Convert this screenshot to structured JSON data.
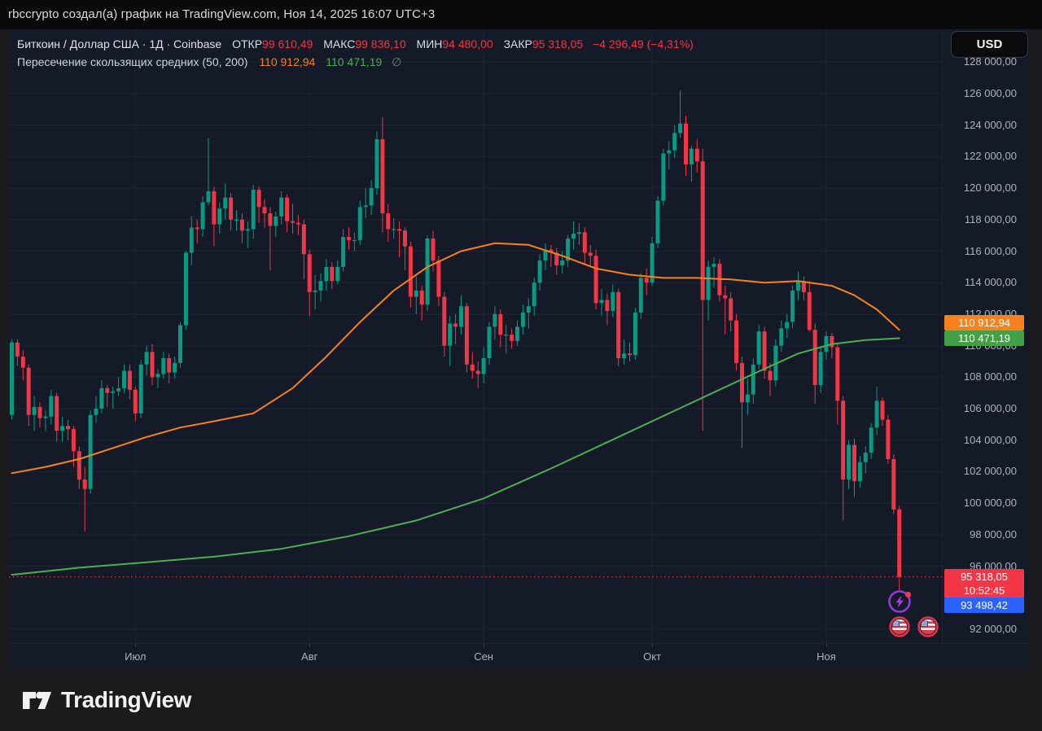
{
  "attribution": "rbccrypto создал(а) график на TradingView.com, Ноя 14, 2025 16:07 UTC+3",
  "header": {
    "title": "Биткоин / Доллар США · 1Д · Coinbase",
    "ohlc": [
      {
        "label": "ОТКР",
        "value": "99 610,49"
      },
      {
        "label": "МАКС",
        "value": "99 836,10"
      },
      {
        "label": "МИН",
        "value": "94 480,00"
      },
      {
        "label": "ЗАКР",
        "value": "95 318,05"
      }
    ],
    "change": "−4 296,49 (−4,31%)",
    "currency_button": "USD"
  },
  "indicator": {
    "name": "Пересечение скользящих средних (50, 200)",
    "ma50_value": "110 912,94",
    "ma200_value": "110 471,19",
    "suffix_symbol": "∅"
  },
  "price_axis": {
    "ticks": [
      {
        "value": 128000,
        "label": "128 000,00"
      },
      {
        "value": 126000,
        "label": "126 000,00"
      },
      {
        "value": 124000,
        "label": "124 000,00"
      },
      {
        "value": 122000,
        "label": "122 000,00"
      },
      {
        "value": 120000,
        "label": "120 000,00"
      },
      {
        "value": 118000,
        "label": "118 000,00"
      },
      {
        "value": 116000,
        "label": "116 000,00"
      },
      {
        "value": 114000,
        "label": "114 000,00"
      },
      {
        "value": 112000,
        "label": "112 000,00"
      },
      {
        "value": 110000,
        "label": "110 000,00"
      },
      {
        "value": 108000,
        "label": "108 000,00"
      },
      {
        "value": 106000,
        "label": "106 000,00"
      },
      {
        "value": 104000,
        "label": "104 000,00"
      },
      {
        "value": 102000,
        "label": "102 000,00"
      },
      {
        "value": 100000,
        "label": "100 000,00"
      },
      {
        "value": 98000,
        "label": "98 000,00"
      },
      {
        "value": 96000,
        "label": "96 000,00"
      },
      {
        "value": 92000,
        "label": "92 000,00"
      }
    ]
  },
  "time_axis": {
    "months": [
      {
        "label": "Июл",
        "day_index": 22
      },
      {
        "label": "Авг",
        "day_index": 53
      },
      {
        "label": "Сен",
        "day_index": 84
      },
      {
        "label": "Окт",
        "day_index": 114
      },
      {
        "label": "Ноя",
        "day_index": 145
      }
    ]
  },
  "price_labels": {
    "ma50": {
      "text": "110 912,94",
      "value": 110912.94,
      "color": "#f7821c"
    },
    "ma200": {
      "text": "110 471,19",
      "value": 110471.19,
      "color": "#43a047"
    },
    "last": {
      "price_text": "95 318,05",
      "countdown_text": "10:52:45",
      "value": 95318.05,
      "color": "#f23645"
    },
    "blue": {
      "text": "93 498,42",
      "value": 93498.42,
      "color": "#2962ff"
    }
  },
  "markers": {
    "lightning": "lightning-event",
    "flags": [
      "us-flag",
      "us-flag"
    ]
  },
  "footer": {
    "logo_text": "TradingView"
  },
  "chart_data": {
    "type": "candlestick",
    "title": "Биткоин / Доллар США 1Д Coinbase",
    "x_start_date": "2025-06-09",
    "x_end_date": "2025-11-14",
    "values_unit": "USD thousands",
    "ylim": [
      91000,
      127500
    ],
    "grid": true,
    "up_color": "#0a9a82",
    "down_color": "#f23645",
    "ma50_color": "#f7821c",
    "ma200_color": "#4caf50",
    "close_line_value": 95.31805,
    "candles": [
      [
        105.6,
        110.4,
        105.3,
        110.2
      ],
      [
        110.2,
        110.4,
        108.7,
        109.3
      ],
      [
        109.3,
        109.7,
        107.8,
        108.6
      ],
      [
        108.6,
        108.8,
        104.9,
        105.6
      ],
      [
        105.6,
        106.8,
        104.6,
        106.1
      ],
      [
        106.1,
        106.4,
        104.8,
        105.4
      ],
      [
        105.4,
        105.9,
        104.6,
        105.5
      ],
      [
        105.5,
        107.2,
        105.0,
        106.8
      ],
      [
        106.8,
        107.0,
        103.9,
        104.6
      ],
      [
        104.6,
        105.5,
        103.9,
        104.9
      ],
      [
        104.9,
        105.3,
        104.0,
        104.7
      ],
      [
        104.7,
        104.9,
        102.3,
        103.3
      ],
      [
        103.3,
        103.6,
        100.9,
        101.5
      ],
      [
        101.5,
        102.3,
        98.2,
        100.9
      ],
      [
        100.9,
        105.9,
        100.6,
        105.6
      ],
      [
        105.6,
        106.8,
        105.1,
        106.0
      ],
      [
        106.0,
        107.8,
        105.7,
        107.3
      ],
      [
        107.3,
        107.5,
        106.1,
        107.0
      ],
      [
        107.0,
        107.4,
        106.0,
        107.1
      ],
      [
        107.1,
        108.0,
        106.8,
        107.3
      ],
      [
        107.3,
        108.8,
        107.0,
        108.4
      ],
      [
        108.4,
        108.8,
        106.6,
        107.2
      ],
      [
        107.2,
        107.4,
        105.2,
        105.7
      ],
      [
        105.7,
        109.1,
        105.4,
        108.8
      ],
      [
        108.8,
        110.0,
        108.1,
        109.6
      ],
      [
        109.6,
        110.1,
        107.5,
        108.0
      ],
      [
        108.0,
        108.5,
        107.3,
        108.2
      ],
      [
        108.2,
        109.6,
        107.9,
        109.2
      ],
      [
        109.2,
        109.5,
        107.6,
        108.3
      ],
      [
        108.3,
        109.3,
        107.9,
        108.9
      ],
      [
        108.9,
        111.5,
        108.6,
        111.3
      ],
      [
        111.3,
        116.0,
        111.0,
        115.9
      ],
      [
        115.9,
        118.2,
        115.1,
        117.5
      ],
      [
        117.5,
        118.0,
        116.5,
        117.4
      ],
      [
        117.4,
        119.5,
        116.9,
        119.1
      ],
      [
        119.1,
        123.2,
        118.9,
        119.8
      ],
      [
        119.8,
        120.1,
        116.3,
        117.7
      ],
      [
        117.7,
        119.1,
        117.1,
        118.7
      ],
      [
        118.7,
        120.3,
        118.0,
        119.4
      ],
      [
        119.4,
        119.7,
        117.3,
        118.0
      ],
      [
        118.0,
        118.6,
        117.3,
        118.0
      ],
      [
        118.0,
        118.4,
        116.5,
        117.3
      ],
      [
        117.3,
        117.9,
        116.2,
        117.4
      ],
      [
        117.4,
        120.2,
        116.8,
        119.9
      ],
      [
        119.9,
        120.1,
        117.8,
        118.8
      ],
      [
        118.8,
        119.3,
        117.5,
        118.4
      ],
      [
        118.4,
        118.8,
        114.8,
        117.6
      ],
      [
        117.6,
        118.5,
        116.9,
        118.2
      ],
      [
        118.2,
        119.8,
        117.7,
        119.4
      ],
      [
        119.4,
        119.6,
        117.2,
        117.9
      ],
      [
        117.9,
        119.0,
        117.1,
        117.8
      ],
      [
        117.8,
        118.3,
        117.0,
        117.7
      ],
      [
        117.7,
        118.0,
        114.2,
        115.8
      ],
      [
        115.8,
        116.1,
        111.9,
        113.4
      ],
      [
        113.4,
        114.5,
        112.3,
        113.5
      ],
      [
        113.5,
        114.6,
        112.8,
        114.1
      ],
      [
        114.1,
        115.5,
        113.5,
        115.0
      ],
      [
        115.0,
        115.3,
        113.6,
        114.1
      ],
      [
        114.1,
        115.4,
        113.9,
        115.0
      ],
      [
        115.0,
        117.4,
        114.7,
        116.9
      ],
      [
        116.9,
        117.5,
        116.1,
        116.7
      ],
      [
        116.7,
        117.2,
        116.0,
        116.7
      ],
      [
        116.7,
        119.2,
        116.4,
        118.8
      ],
      [
        118.8,
        120.0,
        118.1,
        118.9
      ],
      [
        118.9,
        120.5,
        118.3,
        120.0
      ],
      [
        120.0,
        123.6,
        119.6,
        123.1
      ],
      [
        123.1,
        124.5,
        117.2,
        118.4
      ],
      [
        118.4,
        119.0,
        116.6,
        117.4
      ],
      [
        117.4,
        118.1,
        116.8,
        117.4
      ],
      [
        117.4,
        117.9,
        115.6,
        117.3
      ],
      [
        117.3,
        117.5,
        114.8,
        116.3
      ],
      [
        116.3,
        116.6,
        112.4,
        113.1
      ],
      [
        113.1,
        114.4,
        112.0,
        113.5
      ],
      [
        113.5,
        113.8,
        111.6,
        112.6
      ],
      [
        112.6,
        117.0,
        112.2,
        116.8
      ],
      [
        116.8,
        117.3,
        114.7,
        115.4
      ],
      [
        115.4,
        115.7,
        112.5,
        113.1
      ],
      [
        113.1,
        113.4,
        109.3,
        110.0
      ],
      [
        110.0,
        111.9,
        108.7,
        111.4
      ],
      [
        111.4,
        112.0,
        110.1,
        111.2
      ],
      [
        111.2,
        113.2,
        110.7,
        112.5
      ],
      [
        112.5,
        112.7,
        108.3,
        108.8
      ],
      [
        108.8,
        109.6,
        107.9,
        108.4
      ],
      [
        108.4,
        109.0,
        107.3,
        108.2
      ],
      [
        108.2,
        109.9,
        107.6,
        109.2
      ],
      [
        109.2,
        111.5,
        108.8,
        111.2
      ],
      [
        111.2,
        112.5,
        110.4,
        112.0
      ],
      [
        112.0,
        112.3,
        109.9,
        110.7
      ],
      [
        110.7,
        111.3,
        109.5,
        110.7
      ],
      [
        110.7,
        111.1,
        109.8,
        110.3
      ],
      [
        110.3,
        111.6,
        110.0,
        111.2
      ],
      [
        111.2,
        112.6,
        110.7,
        112.1
      ],
      [
        112.1,
        113.0,
        111.1,
        112.5
      ],
      [
        112.5,
        114.3,
        111.9,
        114.0
      ],
      [
        114.0,
        115.8,
        113.5,
        115.4
      ],
      [
        115.4,
        116.5,
        114.8,
        116.1
      ],
      [
        116.1,
        116.4,
        115.0,
        115.9
      ],
      [
        115.9,
        116.2,
        114.5,
        115.1
      ],
      [
        115.1,
        116.0,
        114.6,
        115.4
      ],
      [
        115.4,
        117.0,
        115.0,
        116.8
      ],
      [
        116.8,
        117.9,
        116.1,
        117.1
      ],
      [
        117.1,
        117.8,
        116.4,
        117.2
      ],
      [
        117.2,
        117.5,
        115.2,
        115.9
      ],
      [
        115.9,
        116.4,
        115.0,
        115.7
      ],
      [
        115.7,
        116.1,
        112.3,
        112.7
      ],
      [
        112.7,
        113.6,
        111.9,
        112.9
      ],
      [
        112.9,
        113.3,
        111.3,
        112.2
      ],
      [
        112.2,
        113.9,
        111.8,
        113.4
      ],
      [
        113.4,
        113.6,
        108.7,
        109.2
      ],
      [
        109.2,
        110.4,
        108.8,
        109.5
      ],
      [
        109.5,
        110.2,
        109.0,
        109.4
      ],
      [
        109.4,
        112.4,
        109.1,
        112.1
      ],
      [
        112.1,
        114.6,
        111.7,
        114.3
      ],
      [
        114.3,
        114.9,
        113.2,
        114.0
      ],
      [
        114.0,
        116.9,
        113.8,
        116.5
      ],
      [
        116.5,
        119.5,
        116.2,
        119.2
      ],
      [
        119.2,
        122.5,
        118.9,
        122.2
      ],
      [
        122.2,
        123.0,
        121.2,
        122.4
      ],
      [
        122.4,
        124.0,
        121.9,
        123.5
      ],
      [
        123.5,
        126.2,
        123.2,
        124.1
      ],
      [
        124.1,
        124.6,
        120.8,
        121.5
      ],
      [
        121.5,
        122.7,
        120.4,
        122.5
      ],
      [
        122.5,
        123.1,
        121.0,
        121.7
      ],
      [
        121.7,
        122.5,
        104.6,
        112.9
      ],
      [
        112.9,
        115.4,
        111.6,
        115.0
      ],
      [
        115.0,
        115.6,
        113.7,
        115.2
      ],
      [
        115.2,
        115.5,
        112.8,
        113.2
      ],
      [
        113.2,
        113.8,
        110.7,
        113.0
      ],
      [
        113.0,
        113.4,
        110.9,
        111.6
      ],
      [
        111.6,
        112.0,
        108.4,
        108.9
      ],
      [
        108.9,
        109.3,
        103.5,
        106.4
      ],
      [
        106.4,
        107.9,
        105.6,
        106.9
      ],
      [
        106.9,
        109.2,
        106.3,
        108.8
      ],
      [
        108.8,
        111.3,
        108.5,
        110.9
      ],
      [
        110.9,
        111.2,
        107.9,
        108.4
      ],
      [
        108.4,
        108.9,
        106.8,
        107.8
      ],
      [
        107.8,
        110.4,
        107.4,
        110.0
      ],
      [
        110.0,
        111.6,
        109.6,
        111.1
      ],
      [
        111.1,
        112.0,
        110.5,
        111.5
      ],
      [
        111.5,
        113.8,
        111.1,
        113.5
      ],
      [
        113.5,
        114.7,
        112.9,
        114.1
      ],
      [
        114.1,
        114.4,
        112.9,
        113.4
      ],
      [
        113.4,
        114.1,
        110.9,
        111.0
      ],
      [
        111.0,
        111.4,
        106.3,
        107.5
      ],
      [
        107.5,
        109.9,
        107.0,
        109.6
      ],
      [
        109.6,
        110.9,
        109.1,
        110.6
      ],
      [
        110.6,
        110.8,
        109.2,
        109.9
      ],
      [
        109.9,
        110.1,
        105.0,
        106.5
      ],
      [
        106.5,
        106.8,
        98.9,
        101.5
      ],
      [
        101.5,
        104.0,
        100.9,
        103.7
      ],
      [
        103.7,
        104.1,
        100.4,
        101.4
      ],
      [
        101.4,
        103.0,
        101.0,
        102.6
      ],
      [
        102.6,
        103.6,
        101.9,
        103.2
      ],
      [
        103.2,
        105.1,
        102.8,
        104.8
      ],
      [
        104.8,
        107.4,
        104.3,
        106.5
      ],
      [
        106.5,
        106.7,
        104.9,
        105.3
      ],
      [
        105.3,
        105.6,
        102.5,
        102.8
      ],
      [
        102.8,
        103.1,
        99.3,
        99.6
      ],
      [
        99.61,
        99.836,
        94.48,
        95.318
      ]
    ],
    "ma50": [
      [
        0,
        101.9
      ],
      [
        6,
        102.3
      ],
      [
        12,
        102.8
      ],
      [
        18,
        103.5
      ],
      [
        24,
        104.2
      ],
      [
        30,
        104.8
      ],
      [
        36,
        105.2
      ],
      [
        43,
        105.7
      ],
      [
        50,
        107.3
      ],
      [
        56,
        109.3
      ],
      [
        62,
        111.5
      ],
      [
        68,
        113.5
      ],
      [
        74,
        115.0
      ],
      [
        80,
        116.0
      ],
      [
        86,
        116.5
      ],
      [
        92,
        116.4
      ],
      [
        98,
        115.7
      ],
      [
        104,
        114.9
      ],
      [
        110,
        114.5
      ],
      [
        116,
        114.3
      ],
      [
        122,
        114.3
      ],
      [
        128,
        114.2
      ],
      [
        134,
        114.0
      ],
      [
        140,
        114.1
      ],
      [
        146,
        113.8
      ],
      [
        150,
        113.2
      ],
      [
        154,
        112.3
      ],
      [
        158,
        111.0
      ]
    ],
    "ma200": [
      [
        0,
        95.45
      ],
      [
        12,
        95.9
      ],
      [
        24,
        96.25
      ],
      [
        36,
        96.6
      ],
      [
        48,
        97.1
      ],
      [
        60,
        97.9
      ],
      [
        72,
        98.9
      ],
      [
        84,
        100.3
      ],
      [
        96,
        102.2
      ],
      [
        108,
        104.2
      ],
      [
        120,
        106.2
      ],
      [
        132,
        108.2
      ],
      [
        140,
        109.5
      ],
      [
        146,
        110.1
      ],
      [
        152,
        110.35
      ],
      [
        158,
        110.47
      ]
    ]
  }
}
